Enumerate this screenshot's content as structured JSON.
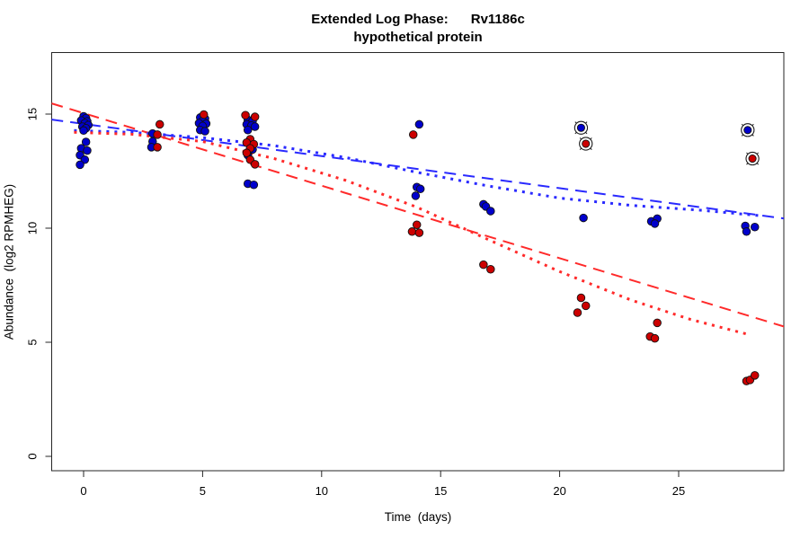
{
  "title": {
    "line1": "Extended Log Phase:      Rv1186c",
    "line2": "hypothetical protein"
  },
  "axes": {
    "x_label": "Time  (days)",
    "y_label": "Abundance  (log2 RPMHEG)",
    "x_ticks": [
      0,
      5,
      10,
      15,
      20,
      25
    ],
    "y_ticks": [
      0,
      5,
      10,
      15
    ]
  },
  "colors": {
    "blue_point": "#0000CC",
    "red_point": "#CC0000",
    "blue_line": "#2A2AFF",
    "red_line": "#FF2A2A",
    "point_edge": "#111111",
    "axis": "#262626"
  },
  "chart_data": {
    "type": "scatter",
    "title": "Extended Log Phase: Rv1186c hypothetical protein",
    "xlabel": "Time (days)",
    "ylabel": "Abundance (log2 RPMHEG)",
    "xlim": [
      -1.35,
      29.45
    ],
    "ylim": [
      -0.65,
      17.7
    ],
    "grid": false,
    "legend": "none",
    "series": [
      {
        "name": "blue-points",
        "marker": "filled-circle",
        "color": "#0000CC",
        "points": [
          [
            0.0,
            14.9
          ],
          [
            0.1,
            14.82
          ],
          [
            -0.1,
            14.72
          ],
          [
            0.15,
            14.68
          ],
          [
            0.05,
            14.6
          ],
          [
            0.2,
            14.52
          ],
          [
            -0.05,
            14.45
          ],
          [
            0.1,
            14.38
          ],
          [
            0.0,
            14.28
          ],
          [
            0.1,
            13.78
          ],
          [
            -0.1,
            13.5
          ],
          [
            0.15,
            13.4
          ],
          [
            -0.15,
            13.2
          ],
          [
            0.05,
            13.0
          ],
          [
            -0.15,
            12.78
          ],
          [
            2.9,
            14.15
          ],
          [
            2.9,
            13.8
          ],
          [
            2.85,
            13.55
          ],
          [
            4.9,
            14.85
          ],
          [
            5.1,
            14.8
          ],
          [
            5.0,
            14.7
          ],
          [
            4.85,
            14.6
          ],
          [
            5.15,
            14.58
          ],
          [
            5.0,
            14.48
          ],
          [
            4.9,
            14.3
          ],
          [
            5.1,
            14.25
          ],
          [
            6.9,
            14.75
          ],
          [
            7.1,
            14.7
          ],
          [
            6.85,
            14.55
          ],
          [
            7.05,
            14.5
          ],
          [
            7.2,
            14.45
          ],
          [
            6.9,
            14.3
          ],
          [
            7.1,
            13.45
          ],
          [
            6.9,
            13.2
          ],
          [
            6.9,
            11.95
          ],
          [
            7.15,
            11.9
          ],
          [
            14.1,
            14.55
          ],
          [
            14.0,
            11.8
          ],
          [
            14.15,
            11.72
          ],
          [
            13.95,
            11.42
          ],
          [
            16.8,
            11.05
          ],
          [
            16.9,
            10.95
          ],
          [
            17.1,
            10.75
          ],
          [
            21.0,
            10.45
          ],
          [
            23.85,
            10.3
          ],
          [
            24.1,
            10.42
          ],
          [
            24.0,
            10.2
          ],
          [
            27.8,
            10.1
          ],
          [
            27.85,
            9.85
          ],
          [
            28.2,
            10.05
          ]
        ]
      },
      {
        "name": "red-points",
        "marker": "filled-circle",
        "color": "#CC0000",
        "points": [
          [
            3.2,
            14.55
          ],
          [
            3.1,
            14.1
          ],
          [
            3.1,
            13.55
          ],
          [
            5.05,
            14.98
          ],
          [
            6.8,
            14.95
          ],
          [
            7.2,
            14.88
          ],
          [
            7.0,
            13.9
          ],
          [
            6.85,
            13.75
          ],
          [
            7.15,
            13.68
          ],
          [
            7.0,
            13.5
          ],
          [
            6.85,
            13.3
          ],
          [
            7.0,
            13.0
          ],
          [
            7.2,
            12.8
          ],
          [
            13.85,
            14.1
          ],
          [
            14.0,
            10.15
          ],
          [
            13.8,
            9.85
          ],
          [
            14.1,
            9.8
          ],
          [
            16.8,
            8.4
          ],
          [
            17.1,
            8.2
          ],
          [
            20.9,
            6.95
          ],
          [
            21.1,
            6.6
          ],
          [
            20.75,
            6.3
          ],
          [
            24.1,
            5.85
          ],
          [
            23.8,
            5.25
          ],
          [
            24.0,
            5.17
          ],
          [
            27.85,
            3.3
          ],
          [
            28.0,
            3.35
          ],
          [
            28.2,
            3.55
          ]
        ]
      },
      {
        "name": "blue-circled-outliers",
        "marker": "circle-x-overlay",
        "color": "#0000CC",
        "points": [
          [
            20.9,
            14.4
          ],
          [
            27.9,
            14.3
          ]
        ]
      },
      {
        "name": "red-circled-outliers",
        "marker": "circle-x-overlay",
        "color": "#CC0000",
        "points": [
          [
            21.1,
            13.7
          ],
          [
            28.1,
            13.05
          ]
        ]
      }
    ],
    "fits": [
      {
        "name": "blue-dashed-linear-fit",
        "style": "dashed",
        "color": "#2A2AFF",
        "points": [
          [
            -1.35,
            14.76
          ],
          [
            29.45,
            10.42
          ]
        ]
      },
      {
        "name": "red-dashed-linear-fit",
        "style": "dashed",
        "color": "#FF2A2A",
        "points": [
          [
            -1.35,
            15.47
          ],
          [
            29.45,
            5.68
          ]
        ]
      },
      {
        "name": "blue-dotted-curve-fit",
        "style": "dotted",
        "color": "#2A2AFF",
        "points": [
          [
            -0.4,
            14.28
          ],
          [
            2,
            14.2
          ],
          [
            5,
            13.97
          ],
          [
            8,
            13.62
          ],
          [
            11,
            13.1
          ],
          [
            14,
            12.45
          ],
          [
            17,
            11.85
          ],
          [
            20,
            11.32
          ],
          [
            23,
            11.0
          ],
          [
            26,
            10.78
          ],
          [
            28.4,
            10.55
          ]
        ]
      },
      {
        "name": "red-dotted-curve-fit",
        "style": "dotted",
        "color": "#FF2A2A",
        "points": [
          [
            -0.4,
            14.2
          ],
          [
            2,
            14.12
          ],
          [
            5,
            13.8
          ],
          [
            8,
            13.05
          ],
          [
            11,
            12.1
          ],
          [
            14,
            10.92
          ],
          [
            17,
            9.5
          ],
          [
            20,
            8.1
          ],
          [
            23,
            6.85
          ],
          [
            25.5,
            6.0
          ],
          [
            27.9,
            5.35
          ]
        ]
      }
    ]
  }
}
